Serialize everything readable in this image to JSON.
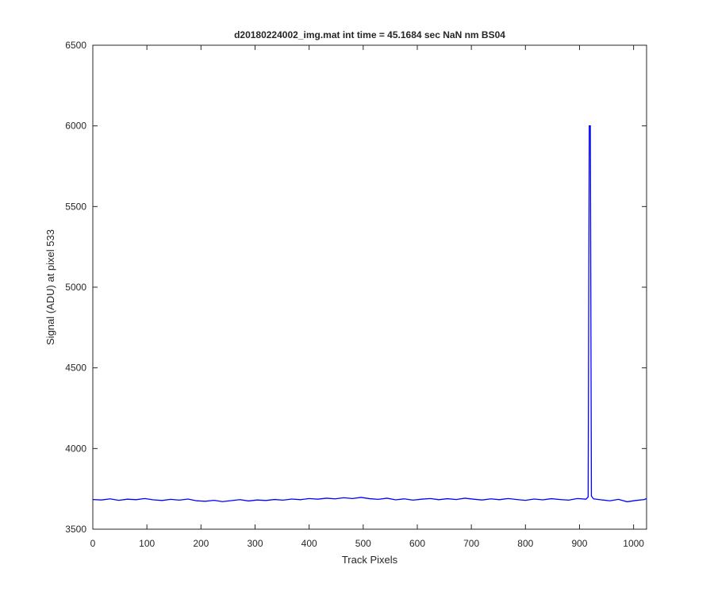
{
  "chart_data": {
    "type": "line",
    "title": "d20180224002_img.mat int time = 45.1684 sec  NaN nm BS04",
    "x_label": "Track Pixels",
    "y_label": "Signal (ADU) at pixel 533",
    "x": [
      0,
      16,
      32,
      48,
      64,
      80,
      96,
      112,
      128,
      144,
      160,
      176,
      192,
      208,
      224,
      240,
      256,
      272,
      288,
      304,
      320,
      336,
      352,
      368,
      384,
      400,
      416,
      432,
      448,
      464,
      480,
      496,
      512,
      528,
      544,
      560,
      576,
      592,
      608,
      624,
      640,
      656,
      672,
      688,
      704,
      720,
      736,
      752,
      768,
      784,
      800,
      816,
      832,
      848,
      864,
      880,
      896,
      912,
      916,
      918,
      920,
      922,
      926,
      940,
      956,
      972,
      988,
      1004,
      1020,
      1024
    ],
    "series": [
      {
        "color": "#0000ff",
        "values": [
          3684,
          3681,
          3688,
          3679,
          3686,
          3683,
          3690,
          3682,
          3678,
          3685,
          3680,
          3687,
          3676,
          3673,
          3679,
          3671,
          3677,
          3683,
          3675,
          3681,
          3678,
          3684,
          3680,
          3687,
          3683,
          3690,
          3686,
          3692,
          3688,
          3695,
          3690,
          3697,
          3689,
          3685,
          3692,
          3682,
          3688,
          3680,
          3686,
          3690,
          3683,
          3689,
          3684,
          3692,
          3686,
          3681,
          3688,
          3683,
          3690,
          3684,
          3679,
          3687,
          3682,
          3689,
          3684,
          3680,
          3690,
          3686,
          3700,
          6000,
          6000,
          3705,
          3688,
          3682,
          3676,
          3685,
          3670,
          3678,
          3684,
          3690
        ]
      }
    ],
    "xlim": [
      0,
      1024
    ],
    "xticks": [
      0,
      100,
      200,
      300,
      400,
      500,
      600,
      700,
      800,
      900,
      1000
    ],
    "ylim": [
      3500,
      6500
    ],
    "yticks": [
      3500,
      4000,
      4500,
      5000,
      5500,
      6000,
      6500
    ]
  }
}
